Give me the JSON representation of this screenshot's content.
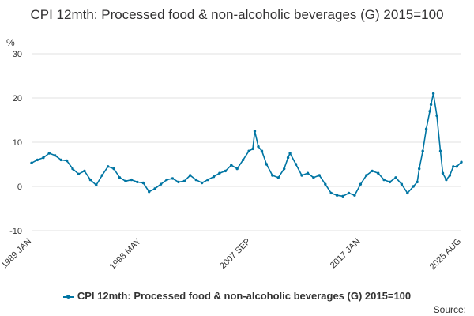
{
  "chart_data": {
    "type": "line",
    "title": "CPI 12mth: Processed food & non-alcoholic beverages (G) 2015=100",
    "ylabel": "%",
    "ylim": [
      -10,
      30
    ],
    "yticks": [
      "-10",
      "0",
      "10",
      "20",
      "30"
    ],
    "xlim": [
      1989.0,
      2025.583
    ],
    "xticks": [
      {
        "label": "1989 JAN",
        "x": 1989.0
      },
      {
        "label": "1998 MAY",
        "x": 1998.333
      },
      {
        "label": "2007 SEP",
        "x": 2007.667
      },
      {
        "label": "2017 JAN",
        "x": 2017.0
      },
      {
        "label": "2025 AUG",
        "x": 2025.583
      }
    ],
    "grid": "horizontal",
    "legend": "bottom",
    "series": [
      {
        "name": "CPI 12mth: Processed food & non-alcoholic beverages (G) 2015=100",
        "color": "#0075a3",
        "x": [
          1989.0,
          1989.5,
          1990.0,
          1990.5,
          1991.0,
          1991.5,
          1992.0,
          1992.5,
          1993.0,
          1993.5,
          1994.0,
          1994.5,
          1995.0,
          1995.5,
          1996.0,
          1996.5,
          1997.0,
          1997.5,
          1998.0,
          1998.5,
          1999.0,
          1999.5,
          2000.0,
          2000.5,
          2001.0,
          2001.5,
          2002.0,
          2002.5,
          2003.0,
          2003.5,
          2004.0,
          2004.5,
          2005.0,
          2005.5,
          2006.0,
          2006.5,
          2007.0,
          2007.5,
          2007.83,
          2008.0,
          2008.3,
          2008.6,
          2009.0,
          2009.5,
          2010.0,
          2010.5,
          2010.83,
          2011.0,
          2011.5,
          2012.0,
          2012.5,
          2013.0,
          2013.5,
          2014.0,
          2014.5,
          2015.0,
          2015.5,
          2016.0,
          2016.5,
          2017.0,
          2017.5,
          2018.0,
          2018.5,
          2019.0,
          2019.5,
          2020.0,
          2020.5,
          2021.0,
          2021.5,
          2021.83,
          2022.0,
          2022.3,
          2022.6,
          2022.9,
          2023.0,
          2023.2,
          2023.5,
          2023.8,
          2024.0,
          2024.3,
          2024.6,
          2024.9,
          2025.2,
          2025.583
        ],
        "y": [
          5.3,
          6.0,
          6.5,
          7.5,
          7.0,
          6.0,
          5.8,
          4.0,
          2.8,
          3.5,
          1.5,
          0.3,
          2.5,
          4.5,
          4.0,
          2.0,
          1.2,
          1.5,
          1.0,
          0.8,
          -1.2,
          -0.5,
          0.5,
          1.5,
          1.8,
          1.0,
          1.2,
          2.5,
          1.5,
          0.8,
          1.5,
          2.2,
          3.0,
          3.5,
          4.8,
          4.0,
          6.0,
          8.0,
          8.5,
          12.5,
          9.0,
          8.0,
          5.0,
          2.5,
          2.0,
          4.0,
          6.5,
          7.5,
          5.0,
          2.5,
          3.0,
          2.0,
          2.5,
          0.5,
          -1.5,
          -2.0,
          -2.2,
          -1.5,
          -2.0,
          0.5,
          2.5,
          3.5,
          3.0,
          1.5,
          1.0,
          2.0,
          0.5,
          -1.5,
          0.0,
          1.0,
          4.0,
          8.0,
          13.0,
          17.0,
          18.5,
          21.0,
          16.0,
          8.0,
          3.0,
          1.5,
          2.5,
          4.5,
          4.5,
          5.5
        ]
      }
    ],
    "source": "Source:"
  }
}
